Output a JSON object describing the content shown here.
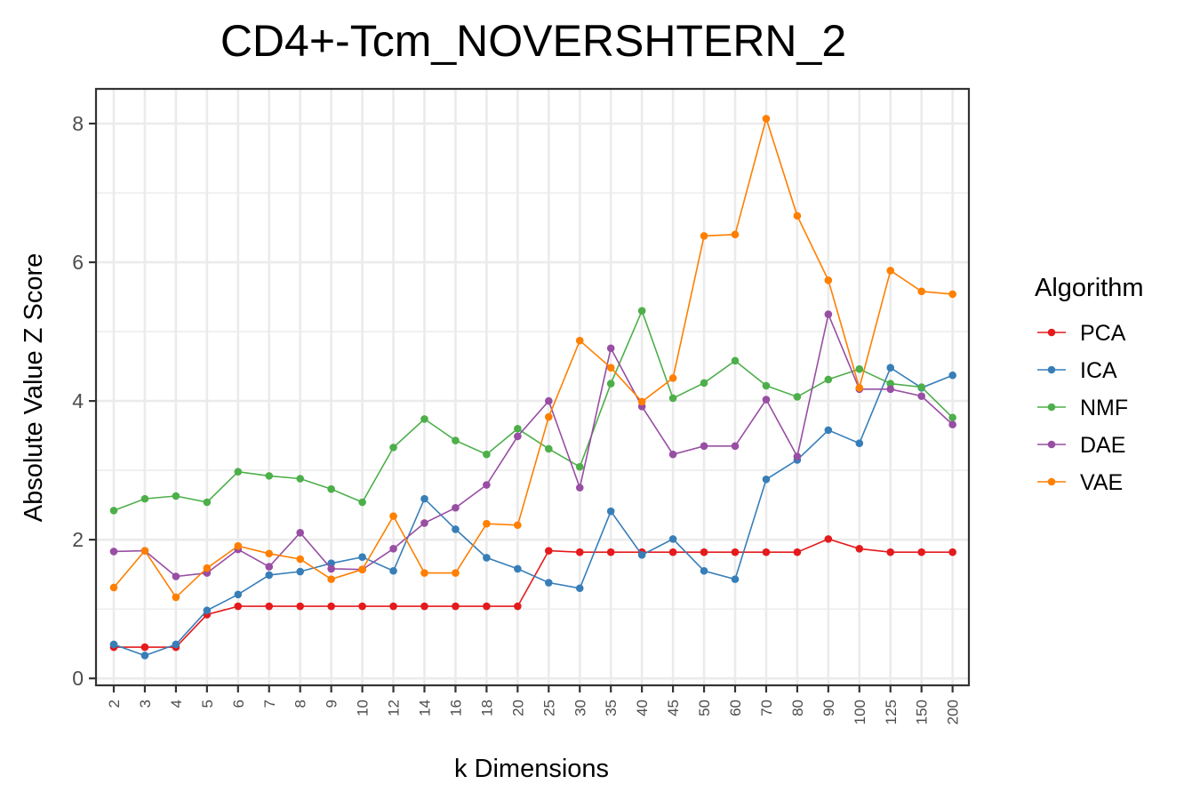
{
  "chart_data": {
    "type": "line",
    "title": "CD4+-Tcm_NOVERSHTERN_2",
    "xlabel": "k Dimensions",
    "ylabel": "Absolute Value Z Score",
    "categories": [
      "2",
      "3",
      "4",
      "5",
      "6",
      "7",
      "8",
      "9",
      "10",
      "12",
      "14",
      "16",
      "18",
      "20",
      "25",
      "30",
      "35",
      "40",
      "45",
      "50",
      "60",
      "70",
      "80",
      "90",
      "100",
      "125",
      "150",
      "200"
    ],
    "yticks": [
      "0",
      "2",
      "4",
      "6",
      "8"
    ],
    "ylim": [
      -0.1,
      8.5
    ],
    "grid": true,
    "legend": {
      "title": "Algorithm",
      "position": "right"
    },
    "series": [
      {
        "name": "PCA",
        "color": "#E41A1C",
        "values": [
          0.45,
          0.45,
          0.45,
          0.92,
          1.04,
          1.04,
          1.04,
          1.04,
          1.04,
          1.04,
          1.04,
          1.04,
          1.04,
          1.04,
          1.84,
          1.82,
          1.82,
          1.82,
          1.82,
          1.82,
          1.82,
          1.82,
          1.82,
          2.01,
          1.87,
          1.82,
          1.82,
          1.82
        ]
      },
      {
        "name": "ICA",
        "color": "#377EB8",
        "values": [
          0.49,
          0.33,
          0.49,
          0.98,
          1.21,
          1.49,
          1.54,
          1.66,
          1.75,
          1.55,
          2.59,
          2.15,
          1.74,
          1.58,
          1.38,
          1.3,
          2.41,
          1.78,
          2.01,
          1.55,
          1.43,
          2.87,
          3.15,
          3.58,
          3.39,
          4.48,
          4.19,
          4.37
        ]
      },
      {
        "name": "NMF",
        "color": "#4DAF4A",
        "values": [
          2.42,
          2.59,
          2.63,
          2.54,
          2.98,
          2.92,
          2.88,
          2.73,
          2.54,
          3.33,
          3.74,
          3.43,
          3.23,
          3.6,
          3.31,
          3.05,
          4.25,
          5.3,
          4.04,
          4.26,
          4.58,
          4.22,
          4.06,
          4.31,
          4.46,
          4.25,
          4.2,
          3.76
        ]
      },
      {
        "name": "DAE",
        "color": "#984EA3",
        "values": [
          1.83,
          1.84,
          1.47,
          1.52,
          1.86,
          1.61,
          2.1,
          1.58,
          1.57,
          1.87,
          2.24,
          2.46,
          2.79,
          3.49,
          4.0,
          2.75,
          4.76,
          3.92,
          3.23,
          3.35,
          3.35,
          4.02,
          3.2,
          5.25,
          4.17,
          4.17,
          4.07,
          3.66
        ]
      },
      {
        "name": "VAE",
        "color": "#FF7F00",
        "values": [
          1.31,
          1.84,
          1.17,
          1.59,
          1.91,
          1.8,
          1.72,
          1.43,
          1.57,
          2.34,
          1.52,
          1.52,
          2.23,
          2.21,
          3.77,
          4.87,
          4.48,
          3.99,
          4.33,
          6.38,
          6.4,
          8.07,
          6.67,
          5.74,
          4.19,
          5.88,
          5.58,
          5.54
        ]
      }
    ]
  }
}
